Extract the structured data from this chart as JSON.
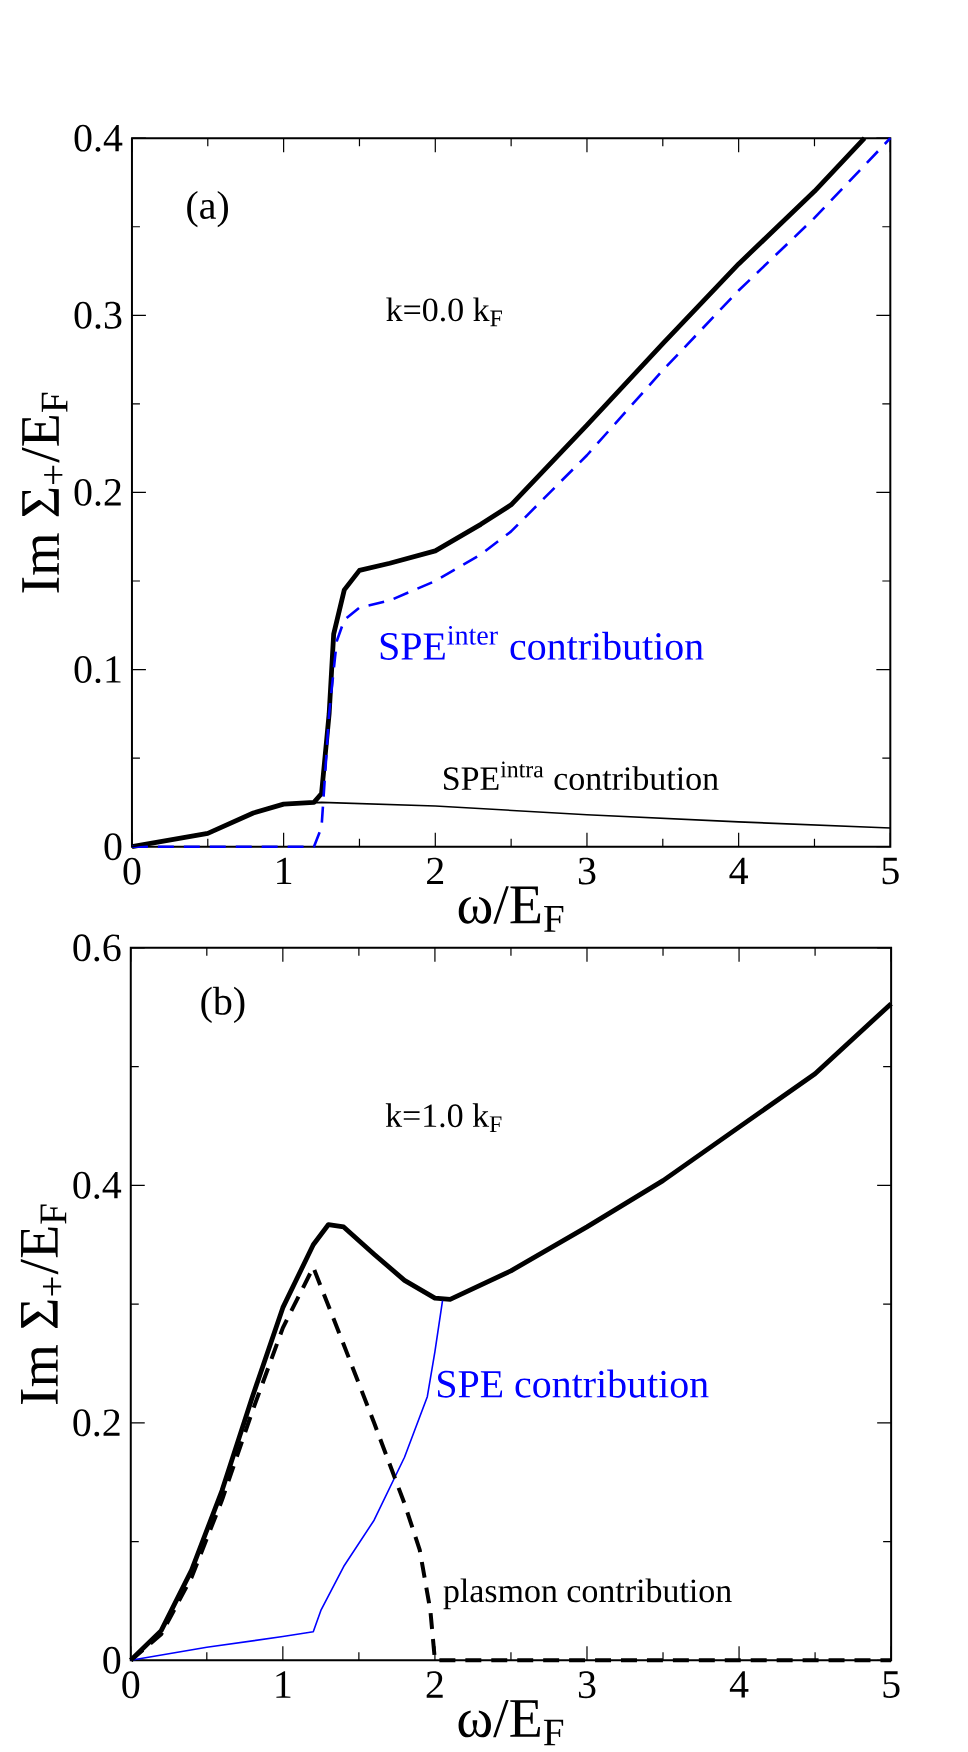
{
  "chart_data": [
    {
      "type": "line",
      "xlabel": "ω/E$_{F}$",
      "ylabel": "Im Σ$_{+}$/E$_{F}$",
      "xlim": [
        0,
        5
      ],
      "ylim": [
        0,
        0.4
      ],
      "xticks": [
        0,
        1,
        2,
        3,
        4,
        5
      ],
      "yticks": [
        0,
        0.1,
        0.2,
        0.3,
        0.4
      ],
      "grid": false,
      "legend": false,
      "marker": "none",
      "annotations": [
        "(a)",
        "k=0.0 k$_{F}$"
      ],
      "series": [
        {
          "color": "#000000",
          "line_style": "solid",
          "x": [
            0,
            0.5,
            0.8,
            1.0,
            1.2,
            1.25,
            1.3,
            1.33,
            1.4,
            1.5,
            1.7,
            2.0,
            2.3,
            2.5,
            3.0,
            3.5,
            4.0,
            4.5,
            4.83
          ],
          "values": [
            0,
            0.0075,
            0.019,
            0.024,
            0.025,
            0.03,
            0.075,
            0.12,
            0.145,
            0.156,
            0.16,
            0.167,
            0.182,
            0.193,
            0.238,
            0.284,
            0.329,
            0.37,
            0.4
          ]
        },
        {
          "name": "SPE$^{inter}$ contribution",
          "color": "#0000ff",
          "line_style": "dashed",
          "x": [
            0,
            1.2,
            1.25,
            1.3,
            1.35,
            1.4,
            1.5,
            1.7,
            2.0,
            2.3,
            2.5,
            3.0,
            3.5,
            4.0,
            4.5,
            5.0
          ],
          "values": [
            0,
            0,
            0.011,
            0.075,
            0.116,
            0.128,
            0.135,
            0.139,
            0.15,
            0.165,
            0.178,
            0.221,
            0.269,
            0.314,
            0.355,
            0.4
          ]
        },
        {
          "name": "SPE$^{intra}$ contribution",
          "color": "#000000",
          "line_style": "solid",
          "x": [
            0,
            0.5,
            0.8,
            1.0,
            1.25,
            2.0,
            3.0,
            4.0,
            5.0
          ],
          "values": [
            0,
            0.0075,
            0.019,
            0.024,
            0.025,
            0.023,
            0.018,
            0.014,
            0.0105
          ]
        }
      ]
    },
    {
      "type": "line",
      "xlabel": "ω/E$_{F}$",
      "ylabel": "Im Σ$_{+}$/E$_{F}$",
      "xlim": [
        0,
        5
      ],
      "ylim": [
        0,
        0.6
      ],
      "xticks": [
        0,
        1,
        2,
        3,
        4,
        5
      ],
      "yticks": [
        0,
        0.2,
        0.4,
        0.6
      ],
      "grid": false,
      "legend": false,
      "marker": "none",
      "annotations": [
        "(b)",
        "k=1.0 k$_{F}$"
      ],
      "series": [
        {
          "color": "#000000",
          "line_style": "solid",
          "x": [
            0,
            0.2,
            0.4,
            0.6,
            0.8,
            1.0,
            1.2,
            1.3,
            1.4,
            1.6,
            1.8,
            2.0,
            2.1,
            2.5,
            3.0,
            3.5,
            4.0,
            4.5,
            5.0
          ],
          "values": [
            0,
            0.025,
            0.076,
            0.143,
            0.222,
            0.297,
            0.35,
            0.367,
            0.365,
            0.342,
            0.32,
            0.305,
            0.304,
            0.328,
            0.365,
            0.404,
            0.449,
            0.494,
            0.553
          ]
        },
        {
          "name": "SPE contribution",
          "color": "#0000ff",
          "line_style": "solid",
          "x": [
            0,
            0.5,
            1.0,
            1.2,
            1.25,
            1.4,
            1.6,
            1.8,
            1.95,
            2.0,
            2.05
          ],
          "values": [
            0,
            0.011,
            0.02,
            0.024,
            0.042,
            0.079,
            0.118,
            0.171,
            0.222,
            0.26,
            0.303
          ]
        },
        {
          "name": "plasmon contribution",
          "color": "#000000",
          "line_style": "dashed",
          "x": [
            0,
            0.2,
            0.4,
            0.6,
            0.8,
            1.0,
            1.2,
            1.4,
            1.6,
            1.8,
            1.9,
            1.97,
            2.0,
            5.0
          ],
          "values": [
            0,
            0.022,
            0.07,
            0.135,
            0.21,
            0.28,
            0.331,
            0.266,
            0.2,
            0.132,
            0.093,
            0.042,
            0,
            0
          ]
        }
      ]
    }
  ]
}
